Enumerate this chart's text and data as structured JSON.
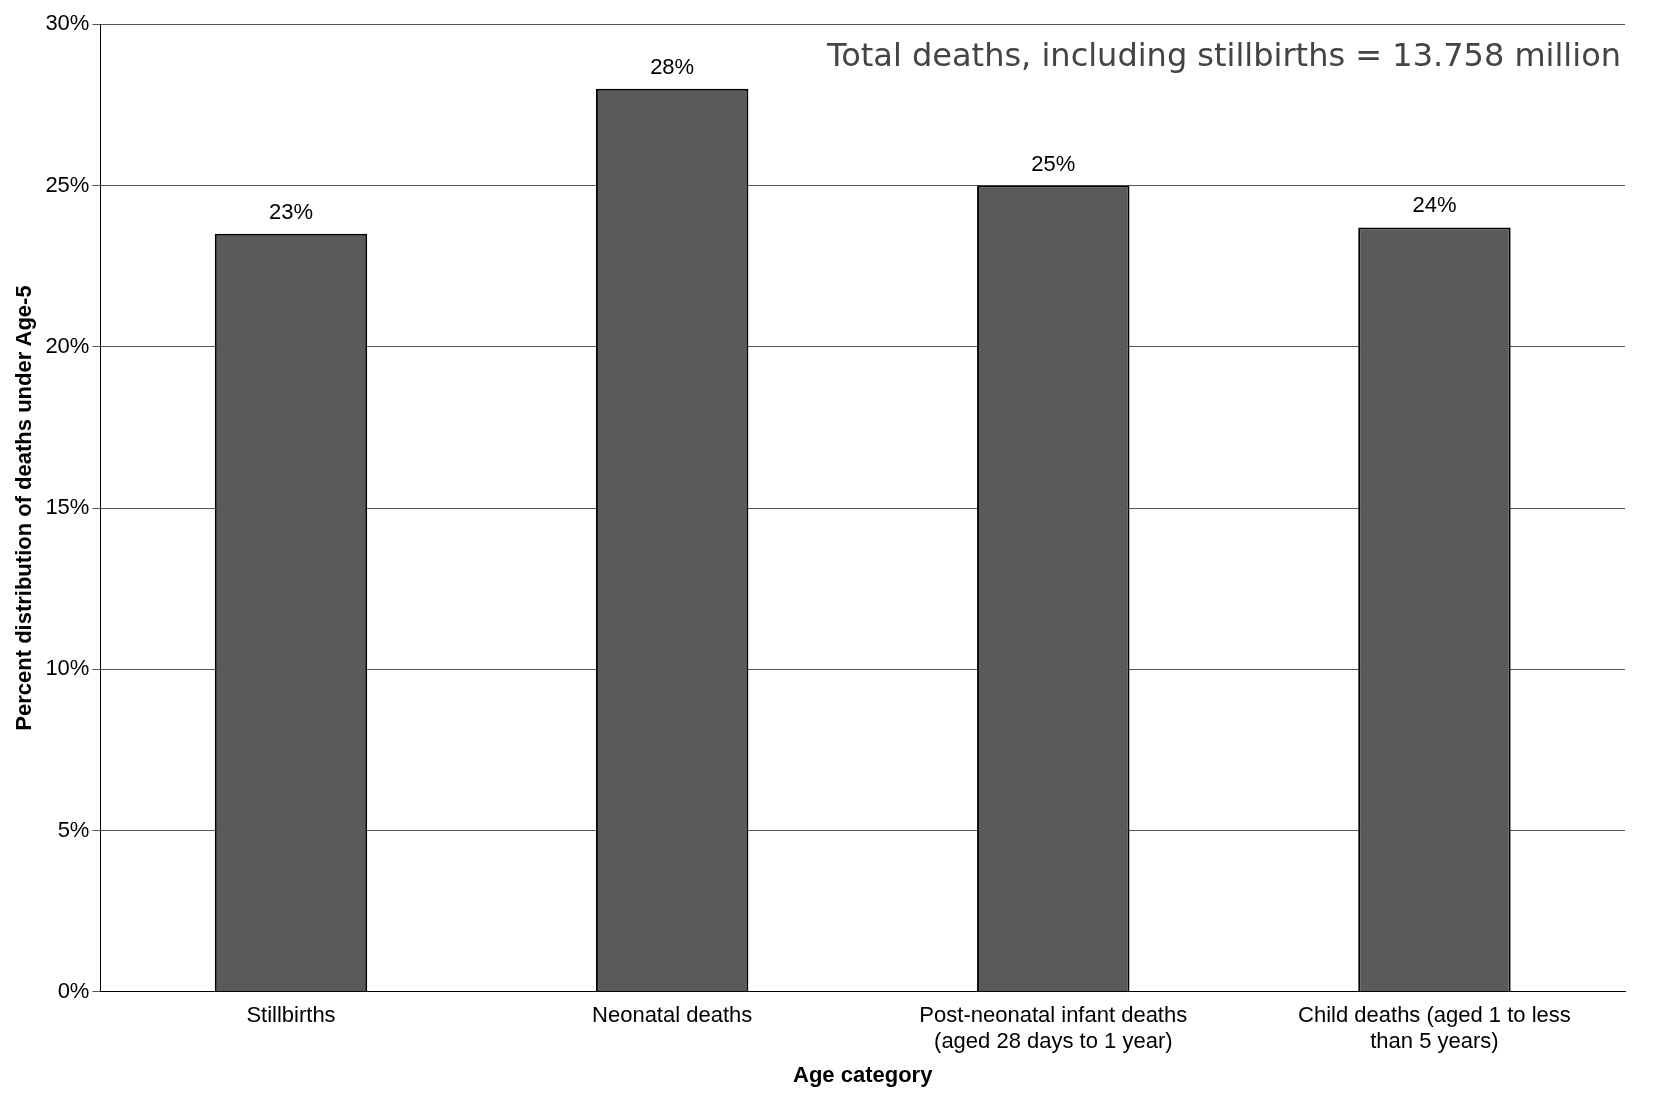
{
  "chart_data": {
    "type": "bar",
    "xlabel": "Age category",
    "ylabel": "Percent distribution of deaths under Age-5",
    "categories": [
      "Stillbirths",
      "Neonatal deaths",
      "Post-neonatal infant deaths (aged 28 days to 1 year)",
      "Child deaths (aged 1 to less than 5 years)"
    ],
    "values": [
      23.5,
      28,
      25,
      23.7
    ],
    "value_labels": [
      "23%",
      "28%",
      "25%",
      "24%"
    ],
    "color": "#5a5a5a",
    "ylim": [
      0,
      30
    ],
    "yticks": [
      {
        "value": 0,
        "label": "0%"
      },
      {
        "value": 5,
        "label": "5%"
      },
      {
        "value": 10,
        "label": "10%"
      },
      {
        "value": 15,
        "label": "15%"
      },
      {
        "value": 20,
        "label": "20%"
      },
      {
        "value": 25,
        "label": "25%"
      },
      {
        "value": 30,
        "label": "30%"
      }
    ],
    "grid": "y",
    "legend": false,
    "annotations": [
      "Total deaths, including stillbirths = 13.758 million"
    ]
  }
}
